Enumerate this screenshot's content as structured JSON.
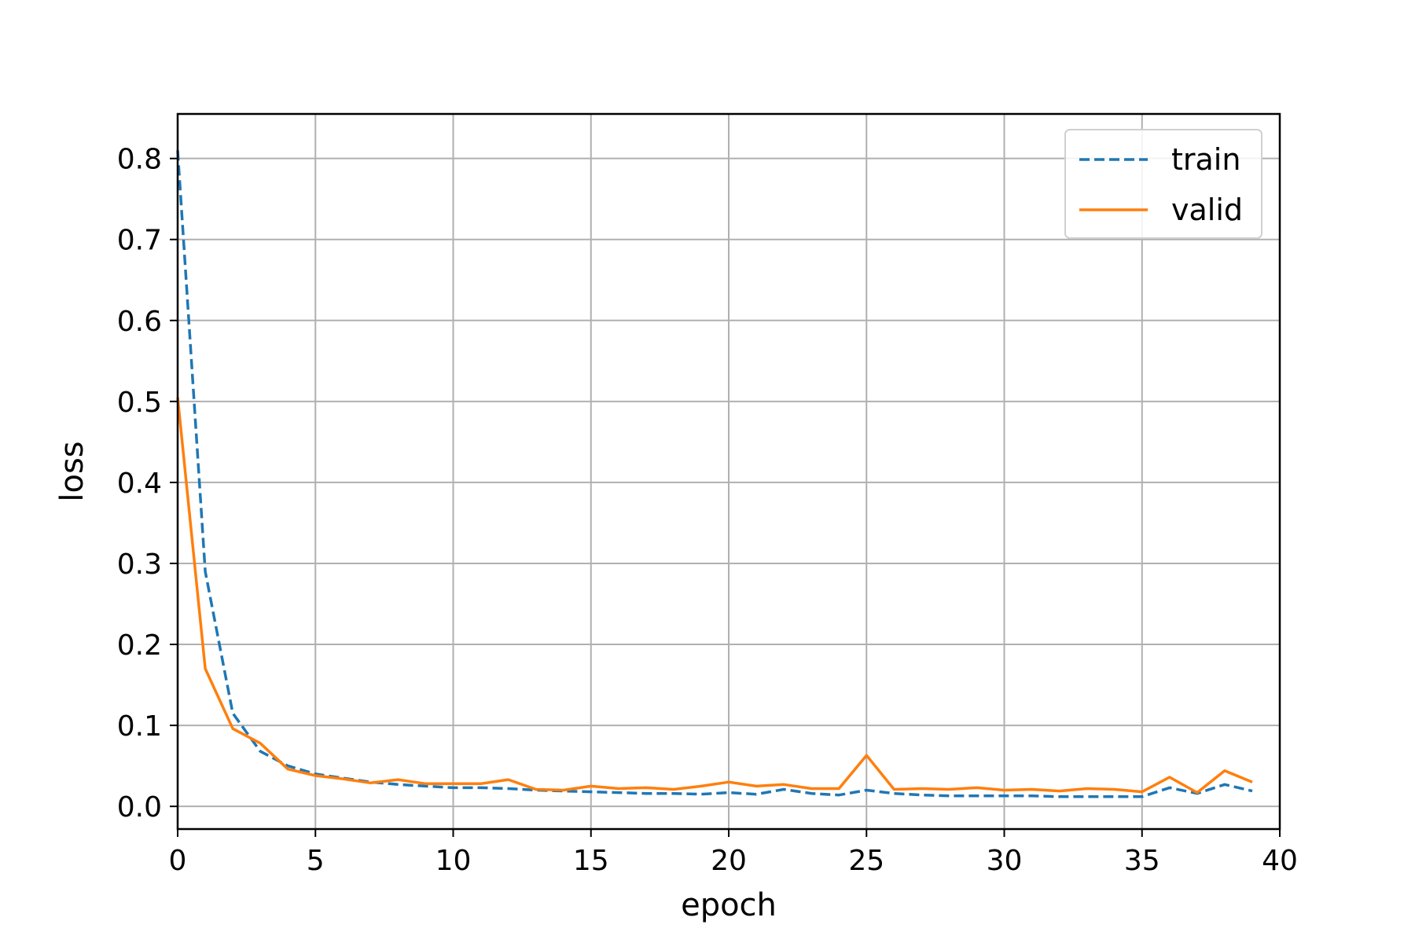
{
  "chart_data": {
    "type": "line",
    "title": "",
    "xlabel": "epoch",
    "ylabel": "loss",
    "xlim": [
      0,
      40
    ],
    "ylim": [
      -0.028,
      0.855
    ],
    "xticks": [
      0,
      5,
      10,
      15,
      20,
      25,
      30,
      35,
      40
    ],
    "xtick_labels": [
      "0",
      "5",
      "10",
      "15",
      "20",
      "25",
      "30",
      "35",
      "40"
    ],
    "yticks": [
      0.0,
      0.1,
      0.2,
      0.3,
      0.4,
      0.5,
      0.6,
      0.7,
      0.8
    ],
    "ytick_labels": [
      "0.0",
      "0.1",
      "0.2",
      "0.3",
      "0.4",
      "0.5",
      "0.6",
      "0.7",
      "0.8"
    ],
    "grid": true,
    "legend_position": "top-right",
    "x": [
      0,
      1,
      2,
      3,
      4,
      5,
      6,
      7,
      8,
      9,
      10,
      11,
      12,
      13,
      14,
      15,
      16,
      17,
      18,
      19,
      20,
      21,
      22,
      23,
      24,
      25,
      26,
      27,
      28,
      29,
      30,
      31,
      32,
      33,
      34,
      35,
      36,
      37,
      38,
      39
    ],
    "series": [
      {
        "name": "train",
        "color": "#1f77b4",
        "dash": "dashed",
        "values": [
          0.81,
          0.29,
          0.115,
          0.068,
          0.05,
          0.04,
          0.035,
          0.03,
          0.027,
          0.025,
          0.023,
          0.023,
          0.022,
          0.02,
          0.019,
          0.018,
          0.017,
          0.016,
          0.016,
          0.015,
          0.017,
          0.015,
          0.021,
          0.016,
          0.014,
          0.02,
          0.016,
          0.014,
          0.013,
          0.013,
          0.013,
          0.013,
          0.012,
          0.012,
          0.012,
          0.012,
          0.023,
          0.016,
          0.027,
          0.019
        ]
      },
      {
        "name": "valid",
        "color": "#ff7f0e",
        "dash": "solid",
        "values": [
          0.505,
          0.17,
          0.096,
          0.078,
          0.046,
          0.038,
          0.034,
          0.029,
          0.033,
          0.028,
          0.028,
          0.028,
          0.033,
          0.021,
          0.02,
          0.025,
          0.022,
          0.023,
          0.021,
          0.025,
          0.03,
          0.025,
          0.027,
          0.022,
          0.022,
          0.063,
          0.021,
          0.022,
          0.021,
          0.023,
          0.02,
          0.021,
          0.019,
          0.022,
          0.021,
          0.018,
          0.036,
          0.017,
          0.044,
          0.03
        ]
      }
    ]
  }
}
